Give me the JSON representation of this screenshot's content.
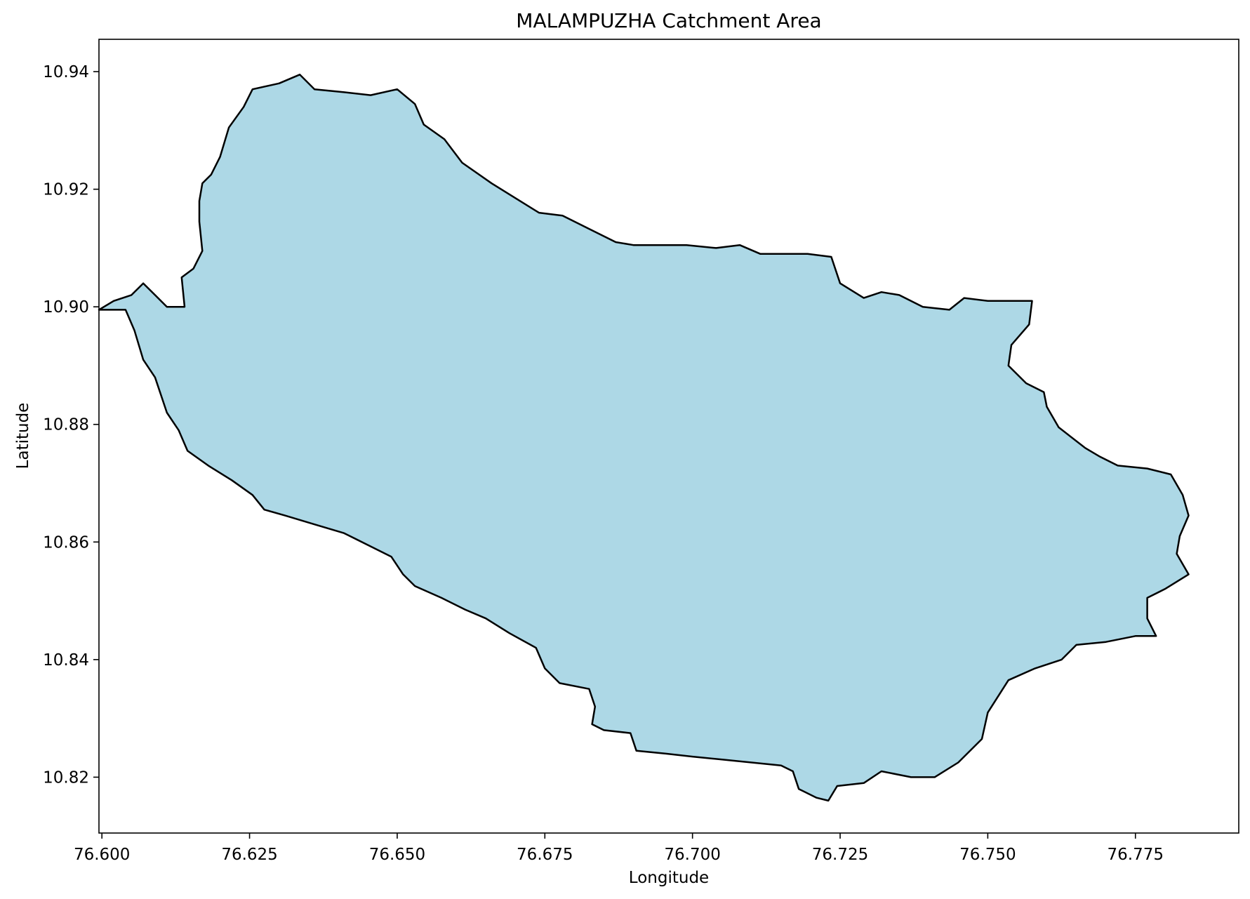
{
  "chart_data": {
    "type": "map",
    "title": "MALAMPUZHA Catchment Area",
    "xlabel": "Longitude",
    "ylabel": "Latitude",
    "xlim": [
      76.5995,
      76.7925
    ],
    "ylim": [
      10.8105,
      10.9455
    ],
    "xticks": [
      76.6,
      76.625,
      76.65,
      76.675,
      76.7,
      76.725,
      76.75,
      76.775
    ],
    "xtick_labels": [
      "76.600",
      "76.625",
      "76.650",
      "76.675",
      "76.700",
      "76.725",
      "76.750",
      "76.775"
    ],
    "yticks": [
      10.82,
      10.84,
      10.86,
      10.88,
      10.9,
      10.92,
      10.94
    ],
    "ytick_labels": [
      "10.82",
      "10.84",
      "10.86",
      "10.88",
      "10.90",
      "10.92",
      "10.94"
    ],
    "grid": false,
    "legend": "none",
    "fill_color": "#add8e6",
    "edge_color": "#000000",
    "boundary": [
      [
        76.604,
        10.8995
      ],
      [
        76.6055,
        10.896
      ],
      [
        76.607,
        10.891
      ],
      [
        76.609,
        10.888
      ],
      [
        76.611,
        10.882
      ],
      [
        76.613,
        10.879
      ],
      [
        76.6145,
        10.8755
      ],
      [
        76.618,
        10.873
      ],
      [
        76.622,
        10.8705
      ],
      [
        76.6255,
        10.868
      ],
      [
        76.6275,
        10.8655
      ],
      [
        76.631,
        10.8645
      ],
      [
        76.636,
        10.863
      ],
      [
        76.641,
        10.8615
      ],
      [
        76.645,
        10.8595
      ],
      [
        76.649,
        10.8575
      ],
      [
        76.651,
        10.8545
      ],
      [
        76.653,
        10.8525
      ],
      [
        76.6575,
        10.8505
      ],
      [
        76.6615,
        10.8485
      ],
      [
        76.665,
        10.847
      ],
      [
        76.669,
        10.8445
      ],
      [
        76.6735,
        10.842
      ],
      [
        76.675,
        10.8385
      ],
      [
        76.6775,
        10.836
      ],
      [
        76.6825,
        10.835
      ],
      [
        76.6835,
        10.832
      ],
      [
        76.683,
        10.829
      ],
      [
        76.685,
        10.828
      ],
      [
        76.6895,
        10.8275
      ],
      [
        76.6905,
        10.8245
      ],
      [
        76.6955,
        10.824
      ],
      [
        76.7,
        10.8235
      ],
      [
        76.705,
        10.823
      ],
      [
        76.71,
        10.8225
      ],
      [
        76.715,
        10.822
      ],
      [
        76.717,
        10.821
      ],
      [
        76.718,
        10.818
      ],
      [
        76.721,
        10.8165
      ],
      [
        76.723,
        10.816
      ],
      [
        76.7245,
        10.8185
      ],
      [
        76.729,
        10.819
      ],
      [
        76.732,
        10.821
      ],
      [
        76.737,
        10.82
      ],
      [
        76.741,
        10.82
      ],
      [
        76.745,
        10.8225
      ],
      [
        76.749,
        10.8265
      ],
      [
        76.75,
        10.831
      ],
      [
        76.7535,
        10.8365
      ],
      [
        76.758,
        10.8385
      ],
      [
        76.7625,
        10.84
      ],
      [
        76.765,
        10.8425
      ],
      [
        76.77,
        10.843
      ],
      [
        76.775,
        10.844
      ],
      [
        76.7785,
        10.844
      ],
      [
        76.777,
        10.847
      ],
      [
        76.777,
        10.8505
      ],
      [
        76.78,
        10.852
      ],
      [
        76.784,
        10.8545
      ],
      [
        76.782,
        10.858
      ],
      [
        76.7825,
        10.861
      ],
      [
        76.784,
        10.8645
      ],
      [
        76.783,
        10.868
      ],
      [
        76.781,
        10.8715
      ],
      [
        76.777,
        10.8725
      ],
      [
        76.772,
        10.873
      ],
      [
        76.769,
        10.8745
      ],
      [
        76.7665,
        10.876
      ],
      [
        76.762,
        10.8795
      ],
      [
        76.76,
        10.883
      ],
      [
        76.7595,
        10.8855
      ],
      [
        76.7565,
        10.887
      ],
      [
        76.7535,
        10.89
      ],
      [
        76.754,
        10.8935
      ],
      [
        76.757,
        10.897
      ],
      [
        76.7575,
        10.901
      ],
      [
        76.755,
        10.901
      ],
      [
        76.75,
        10.901
      ],
      [
        76.746,
        10.9015
      ],
      [
        76.7435,
        10.8995
      ],
      [
        76.739,
        10.9
      ],
      [
        76.735,
        10.902
      ],
      [
        76.732,
        10.9025
      ],
      [
        76.729,
        10.9015
      ],
      [
        76.725,
        10.904
      ],
      [
        76.7235,
        10.9085
      ],
      [
        76.7195,
        10.909
      ],
      [
        76.715,
        10.909
      ],
      [
        76.7115,
        10.909
      ],
      [
        76.708,
        10.9105
      ],
      [
        76.704,
        10.91
      ],
      [
        76.699,
        10.9105
      ],
      [
        76.6945,
        10.9105
      ],
      [
        76.69,
        10.9105
      ],
      [
        76.687,
        10.911
      ],
      [
        76.683,
        10.913
      ],
      [
        76.678,
        10.9155
      ],
      [
        76.674,
        10.916
      ],
      [
        76.67,
        10.9185
      ],
      [
        76.666,
        10.921
      ],
      [
        76.661,
        10.9245
      ],
      [
        76.658,
        10.9285
      ],
      [
        76.6545,
        10.931
      ],
      [
        76.653,
        10.9345
      ],
      [
        76.65,
        10.937
      ],
      [
        76.6455,
        10.936
      ],
      [
        76.641,
        10.9365
      ],
      [
        76.636,
        10.937
      ],
      [
        76.6335,
        10.9395
      ],
      [
        76.63,
        10.938
      ],
      [
        76.6255,
        10.937
      ],
      [
        76.624,
        10.934
      ],
      [
        76.6215,
        10.9305
      ],
      [
        76.62,
        10.9255
      ],
      [
        76.6185,
        10.9225
      ],
      [
        76.617,
        10.921
      ],
      [
        76.6165,
        10.918
      ],
      [
        76.6165,
        10.9145
      ],
      [
        76.617,
        10.9095
      ],
      [
        76.6155,
        10.9065
      ],
      [
        76.6135,
        10.905
      ],
      [
        76.614,
        10.9
      ],
      [
        76.611,
        10.9
      ],
      [
        76.609,
        10.902
      ],
      [
        76.607,
        10.904
      ],
      [
        76.605,
        10.902
      ],
      [
        76.602,
        10.901
      ],
      [
        76.5995,
        10.8995
      ]
    ]
  }
}
